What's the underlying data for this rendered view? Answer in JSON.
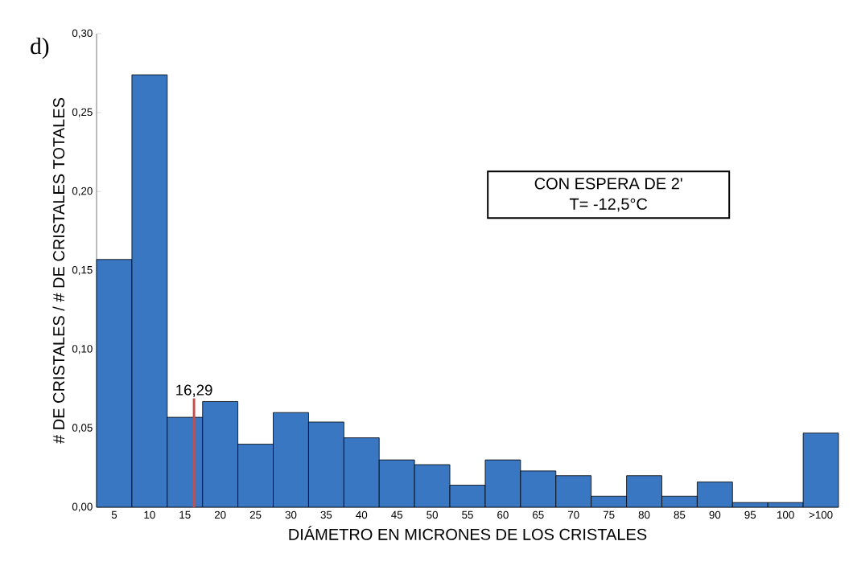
{
  "chart_data": {
    "type": "histogram",
    "xlabel": "DIÁMETRO EN MICRONES DE LOS CRISTALES",
    "ylabel": "# DE CRISTALES / # DE CRISTALES TOTALES",
    "bins": [
      2.5,
      7.5,
      12.5,
      17.5,
      22.5,
      27.5,
      32.5,
      37.5,
      42.5,
      47.5,
      52.5,
      57.5,
      62.5,
      67.5,
      72.5,
      77.5,
      82.5,
      87.5,
      92.5,
      97.5,
      102.5,
      107.5
    ],
    "values": [
      0.157,
      0.274,
      0.057,
      0.067,
      0.04,
      0.06,
      0.054,
      0.044,
      0.03,
      0.027,
      0.014,
      0.03,
      0.023,
      0.02,
      0.007,
      0.02,
      0.007,
      0.016,
      0.003,
      0.003,
      0.047
    ],
    "color": "#3a77c2",
    "xlim": [
      2.5,
      107.5
    ],
    "xticks": [
      5,
      10,
      15,
      20,
      25,
      30,
      35,
      40,
      45,
      50,
      55,
      60,
      65,
      70,
      75,
      80,
      85,
      90,
      95,
      100,
      {
        "value": 105,
        "label": ">100"
      }
    ],
    "ylim": [
      0,
      0.3
    ],
    "yticks": [
      {
        "value": 0,
        "label": "0,00"
      },
      {
        "value": 0.05,
        "label": "0,05"
      },
      {
        "value": 0.1,
        "label": "0,10"
      },
      {
        "value": 0.15,
        "label": "0,15"
      },
      {
        "value": 0.2,
        "label": "0,20"
      },
      {
        "value": 0.25,
        "label": "0,25"
      },
      {
        "value": 0.3,
        "label": "0,30"
      }
    ],
    "ref_lines": [
      {
        "axis": "x",
        "value": 16.29,
        "label": "16,29",
        "color": "#c0504d"
      }
    ],
    "annotations": [
      "d)",
      "CON ESPERA DE 2'",
      "T= -12,5°C"
    ]
  }
}
